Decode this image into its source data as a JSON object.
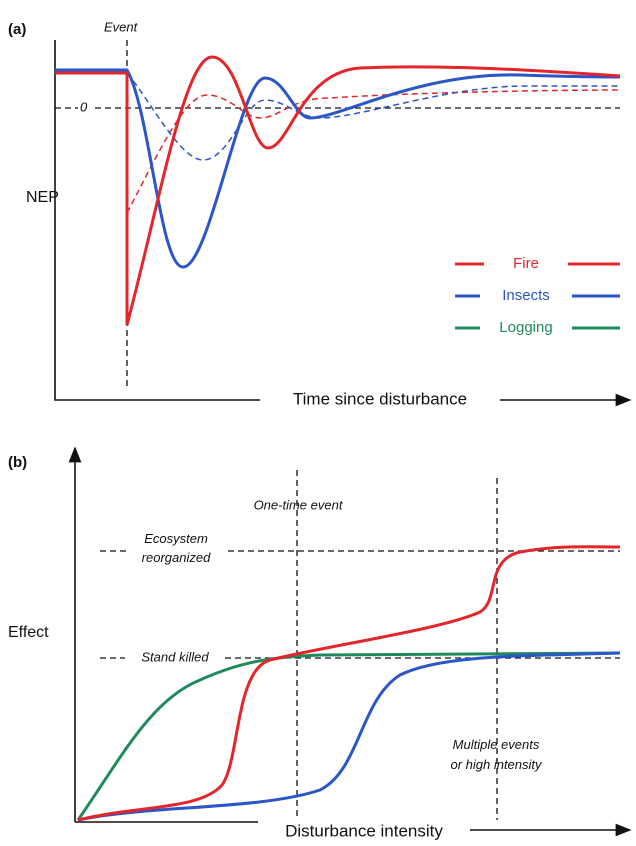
{
  "panel_a": {
    "label": "(a)",
    "event": "Event",
    "zero": "0",
    "y_label": "NEP",
    "x_label": "Time since disturbance",
    "legend": [
      "Fire",
      "Insects",
      "Logging"
    ]
  },
  "panel_b": {
    "label": "(b)",
    "one_time": "One-time event",
    "reorganized": [
      "Ecosystem",
      "reorganized"
    ],
    "y_label": "Effect",
    "stand_killed": "Stand killed",
    "multiple": [
      "Multiple events",
      "or high intensity"
    ],
    "x_label": "Disturbance intensity"
  }
}
